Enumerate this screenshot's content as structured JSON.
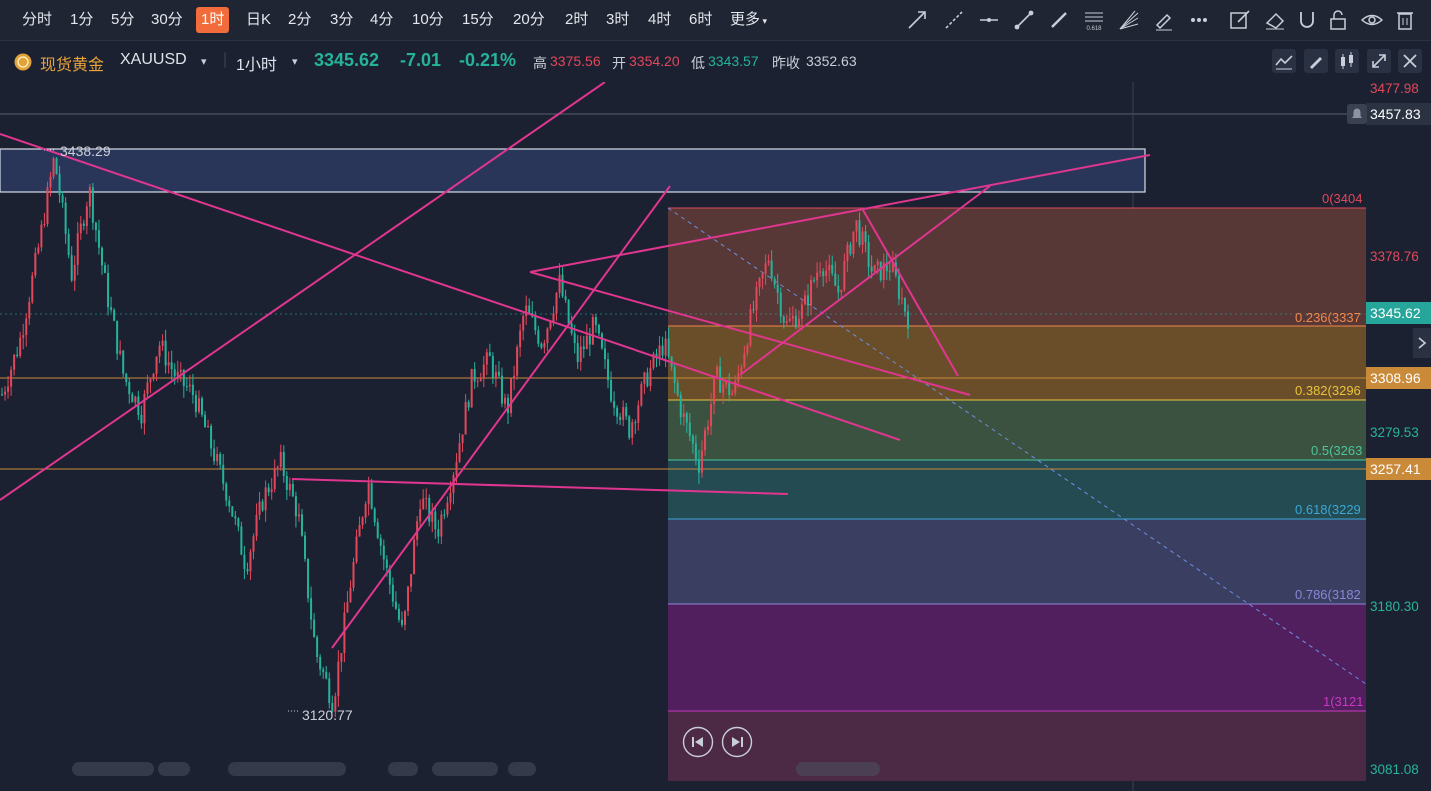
{
  "timeframes": [
    "分时",
    "1分",
    "5分",
    "30分",
    "1时",
    "日K",
    "2分",
    "3分",
    "4分",
    "10分",
    "15分",
    "20分",
    "2时",
    "3时",
    "4时",
    "6时"
  ],
  "active_timeframe": "1时",
  "more_label": "更多",
  "fib_icon_label": "0.618",
  "instrument": {
    "name": "现货黄金",
    "symbol": "XAUUSD",
    "interval": "1小时"
  },
  "quote": {
    "last": "3345.62",
    "change": "-7.01",
    "change_pct": "-0.21%",
    "high_label": "高",
    "high": "3375.56",
    "open_label": "开",
    "open": "3354.20",
    "low_label": "低",
    "low": "3343.57",
    "prev_label": "昨收",
    "prev": "3352.63"
  },
  "colors": {
    "up": "#e2485b",
    "down": "#26b39c",
    "accent": "#f26b3a",
    "trendline": "#e0368f",
    "zone": "#2a3659"
  },
  "axis_labels": [
    {
      "text": "3477.98",
      "color": "#e2485b"
    },
    {
      "text": "3378.76",
      "color": "#e2485b"
    },
    {
      "text": "3279.53",
      "color": "#26b39c"
    },
    {
      "text": "3180.30",
      "color": "#26b39c"
    },
    {
      "text": "3081.08",
      "color": "#26b39c"
    }
  ],
  "price_tags": [
    {
      "text": "3457.83",
      "bg": "#2b3342",
      "color": "#ffffff"
    },
    {
      "text": "3345.62",
      "bg": "#26a69a",
      "color": "#ffffff"
    },
    {
      "text": "3308.96",
      "bg": "#c98a3a",
      "color": "#ffffff"
    },
    {
      "text": "3257.41",
      "bg": "#c98a3a",
      "color": "#ffffff"
    }
  ],
  "fib": [
    {
      "label": "0(3404",
      "color": "#e2485b"
    },
    {
      "label": "0.236(3337",
      "color": "#f2884a"
    },
    {
      "label": "0.382(3296",
      "color": "#e8c43a"
    },
    {
      "label": "0.5(3263",
      "color": "#4cc59c"
    },
    {
      "label": "0.618(3229",
      "color": "#3aa8d8"
    },
    {
      "label": "0.786(3182",
      "color": "#8c86d8"
    },
    {
      "label": "1(3121",
      "color": "#c838c0"
    }
  ],
  "notes": {
    "high": "3438.29",
    "low": "3120.77"
  },
  "chart_data": {
    "type": "candlestick",
    "symbol": "XAUUSD",
    "interval": "1小时",
    "ylim": [
      3081.08,
      3490
    ],
    "y_ticks": [
      3477.98,
      3378.76,
      3279.53,
      3180.3,
      3081.08
    ],
    "horizontal_levels": [
      3457.83,
      3308.96,
      3257.41
    ],
    "current_price": 3345.62,
    "fibonacci": {
      "from": 3404,
      "to": 3121,
      "levels": [
        {
          "ratio": 0,
          "value": 3404
        },
        {
          "ratio": 0.236,
          "value": 3337
        },
        {
          "ratio": 0.382,
          "value": 3296
        },
        {
          "ratio": 0.5,
          "value": 3263
        },
        {
          "ratio": 0.618,
          "value": 3229
        },
        {
          "ratio": 0.786,
          "value": 3182
        },
        {
          "ratio": 1,
          "value": 3121
        }
      ]
    },
    "marked_high": 3438.29,
    "marked_low": 3120.77,
    "price_path": [
      3300,
      3330,
      3380,
      3438,
      3370,
      3420,
      3360,
      3310,
      3290,
      3330,
      3310,
      3300,
      3270,
      3240,
      3200,
      3240,
      3260,
      3230,
      3150,
      3120.77,
      3190,
      3250,
      3200,
      3160,
      3240,
      3220,
      3260,
      3310,
      3320,
      3290,
      3350,
      3330,
      3365,
      3320,
      3340,
      3300,
      3280,
      3310,
      3330,
      3290,
      3260,
      3310,
      3300,
      3345,
      3380,
      3340,
      3350,
      3378,
      3360,
      3400,
      3370,
      3375,
      3345
    ]
  }
}
